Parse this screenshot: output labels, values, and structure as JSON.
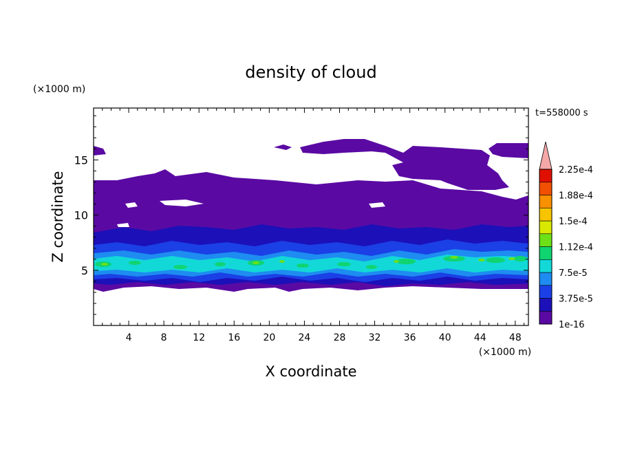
{
  "chart_data": {
    "type": "heatmap",
    "title": "density of cloud",
    "xlabel": "X coordinate",
    "ylabel": "Z coordinate",
    "x_unit": "(×1000 m)",
    "y_unit": "(×1000 m)",
    "time_label": "t=558000 s",
    "xlim": [
      0,
      49.5
    ],
    "ylim": [
      0,
      19.7
    ],
    "x_ticks": [
      4,
      8,
      12,
      16,
      20,
      24,
      28,
      32,
      36,
      40,
      44,
      48
    ],
    "y_ticks": [
      5,
      10,
      15
    ],
    "colorbar": {
      "levels": [
        "1e-16",
        "3.75e-5",
        "7.5e-5",
        "1.12e-4",
        "1.5e-4",
        "1.88e-4",
        "2.25e-4"
      ],
      "colors": [
        "#5a0aa3",
        "#1c10b8",
        "#1a40e6",
        "#1e8cf0",
        "#12d8d8",
        "#10d470",
        "#6de018",
        "#d8e800",
        "#f8c400",
        "#f89000",
        "#f05000",
        "#e01000",
        "#f4a8a8"
      ]
    },
    "cloud_layers": [
      {
        "level": "1e-16",
        "z_range": [
          3.3,
          17
        ]
      },
      {
        "level": "3.75e-5",
        "z_range": [
          4,
          7.5
        ]
      },
      {
        "level": "7.5e-5",
        "z_range": [
          4.3,
          7
        ]
      },
      {
        "level": "1.12e-4",
        "z_range": [
          4.8,
          6.5
        ]
      },
      {
        "level": "1.5e-4",
        "z_range": [
          5,
          6
        ]
      }
    ]
  }
}
